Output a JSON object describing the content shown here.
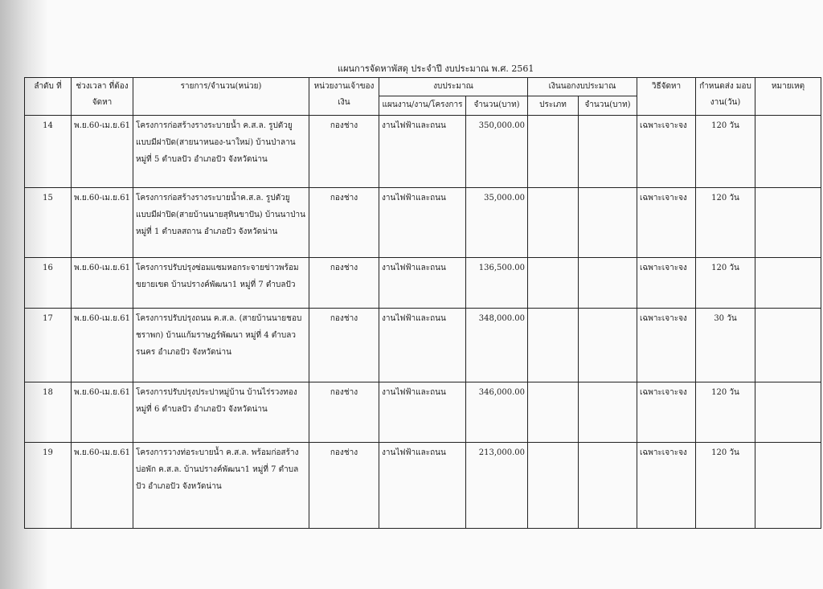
{
  "title": "แผนการจัดหาพัสดุ ประจำปี งบประมาณ พ.ศ. 2561",
  "headers": {
    "no": "ลำดับ ที่",
    "period": "ช่วงเวลา ที่ต้องจัดหา",
    "item": "รายการ/จำนวน(หน่วย)",
    "owner": "หน่วยงานเจ้าของ เงิน",
    "budget": "งบประมาณ",
    "budget_plan": "แผนงาน/งาน/โครงการ",
    "budget_amount": "จำนวน(บาท)",
    "offbudget": "เงินนอกงบประมาณ",
    "off_type": "ประเภท",
    "off_amount": "จำนวน(บาท)",
    "method": "วิธีจัดหา",
    "delivery": "กำหนดส่ง มอบงาน(วัน)",
    "remark": "หมายเหตุ"
  },
  "rows": [
    {
      "no": "14",
      "period": "พ.ย.60-เม.ย.61",
      "item": "โครงการก่อสร้างรางระบายน้ำ ค.ส.ล. รูปตัวยู แบบมีฝาปิด(สายนาหนอง-นาใหม่) บ้านป่าลาน หมู่ที่ 5 ตำบลปัว อำเภอปัว จังหวัดน่าน",
      "owner": "กองช่าง",
      "plan": "งานไฟฟ้าและถนน",
      "amount": "350,000.00",
      "off_type": "",
      "off_amount": "",
      "method": "เฉพาะเจาะจง",
      "delivery": "120 วัน",
      "remark": ""
    },
    {
      "no": "15",
      "period": "พ.ย.60-เม.ย.61",
      "item": "โครงการก่อสร้างรางระบายน้ำค.ส.ล. รูปตัวยู แบบมีฝาปิด(สายบ้านนายสุทินขาปัน) บ้านนาป่าน หมู่ที่ 1 ตำบลสถาน อำเภอปัว จังหวัดน่าน",
      "owner": "กองช่าง",
      "plan": "งานไฟฟ้าและถนน",
      "amount": "35,000.00",
      "off_type": "",
      "off_amount": "",
      "method": "เฉพาะเจาะจง",
      "delivery": "120 วัน",
      "remark": ""
    },
    {
      "no": "16",
      "period": "พ.ย.60-เม.ย.61",
      "item": "โครงการปรับปรุงซ่อมแซมหอกระจายข่าวพร้อมขยายเขต บ้านปรางค์พัฒนา1 หมู่ที่ 7 ตำบลปัว",
      "owner": "กองช่าง",
      "plan": "งานไฟฟ้าและถนน",
      "amount": "136,500.00",
      "off_type": "",
      "off_amount": "",
      "method": "เฉพาะเจาะจง",
      "delivery": "120 วัน",
      "remark": ""
    },
    {
      "no": "17",
      "period": "พ.ย.60-เม.ย.61",
      "item": "โครงการปรับปรุงถนน ค.ส.ล. (สายบ้านนายชอบ ชราพก) บ้านแก้มราษฎร์พัฒนา หมู่ที่ 4 ตำบลวรนคร อำเภอปัว จังหวัดน่าน",
      "owner": "กองช่าง",
      "plan": "งานไฟฟ้าและถนน",
      "amount": "348,000.00",
      "off_type": "",
      "off_amount": "",
      "method": "เฉพาะเจาะจง",
      "delivery": "30 วัน",
      "remark": ""
    },
    {
      "no": "18",
      "period": "พ.ย.60-เม.ย.61",
      "item": "โครงการปรับปรุงประปาหมู่บ้าน บ้านไร่รวงทอง หมู่ที่ 6 ตำบลปัว อำเภอปัว จังหวัดน่าน",
      "owner": "กองช่าง",
      "plan": "งานไฟฟ้าและถนน",
      "amount": "346,000.00",
      "off_type": "",
      "off_amount": "",
      "method": "เฉพาะเจาะจง",
      "delivery": "120 วัน",
      "remark": ""
    },
    {
      "no": "19",
      "period": "พ.ย.60-เม.ย.61",
      "item": "โครงการวางท่อระบายน้ำ ค.ส.ล. พร้อมก่อสร้างบ่อพัก ค.ส.ล. บ้านปรางค์พัฒนา1 หมู่ที่ 7 ตำบลปัว อำเภอปัว จังหวัดน่าน",
      "owner": "กองช่าง",
      "plan": "งานไฟฟ้าและถนน",
      "amount": "213,000.00",
      "off_type": "",
      "off_amount": "",
      "method": "เฉพาะเจาะจง",
      "delivery": "120 วัน",
      "remark": ""
    }
  ]
}
